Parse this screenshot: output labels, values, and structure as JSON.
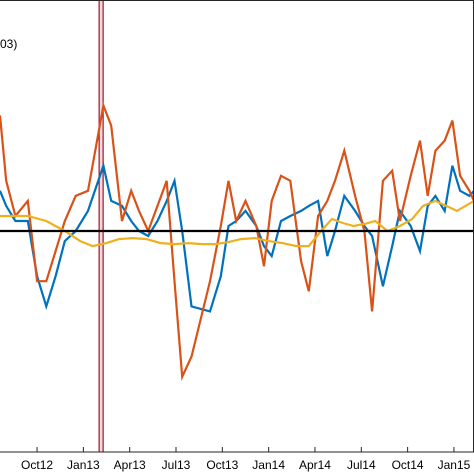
{
  "chart_data": {
    "type": "line",
    "title": "",
    "xlabel": "",
    "ylabel": "",
    "annotation": "03)",
    "grid": false,
    "x_tick_labels": [
      "Oct12",
      "Jan13",
      "Apr13",
      "Jul13",
      "Oct13",
      "Jan14",
      "Apr14",
      "Jul14",
      "Oct14",
      "Jan15"
    ],
    "x_tick_positions": [
      3,
      6,
      9,
      12,
      15,
      18,
      21,
      24,
      27,
      30
    ],
    "xlim": [
      0.6,
      31.3
    ],
    "ylim": [
      -2.2,
      2.3
    ],
    "baseline": 0,
    "baseline_color": "#000000",
    "event_marker": {
      "x": 7.15,
      "band_color": "#f2d9d9",
      "line_color": "#a2142f"
    },
    "series": [
      {
        "color": "#0072bd",
        "x": [
          0.6,
          1,
          1.6,
          2.4,
          3,
          3.6,
          4.2,
          4.8,
          5.5,
          6.3,
          7.3,
          7.8,
          8.5,
          9.1,
          9.6,
          10.2,
          10.8,
          11.4,
          11.9,
          12.4,
          13,
          14.2,
          14.9,
          15.4,
          15.9,
          16.5,
          17.2,
          17.7,
          18.2,
          18.8,
          19.4,
          20.1,
          20.6,
          21.2,
          21.8,
          22.3,
          22.9,
          23.6,
          24.2,
          24.7,
          25.4,
          26,
          26.5,
          27.2,
          27.8,
          28.3,
          28.8,
          29.4,
          29.9,
          30.4,
          31,
          31.3
        ],
        "y": [
          0.4,
          0.25,
          0.1,
          0.1,
          -0.45,
          -0.75,
          -0.45,
          -0.1,
          0,
          0.2,
          0.65,
          0.3,
          0.25,
          0.1,
          0,
          -0.05,
          0.1,
          0.3,
          0.5,
          0,
          -0.75,
          -0.8,
          -0.45,
          0.05,
          0.1,
          0.2,
          0.05,
          -0.15,
          -0.25,
          0.1,
          0.15,
          0.2,
          0.25,
          0.3,
          -0.25,
          0,
          0.35,
          0.2,
          0.05,
          -0.05,
          -0.55,
          -0.15,
          0.2,
          0.05,
          -0.2,
          0.25,
          0.35,
          0.2,
          0.65,
          0.4,
          0.35,
          0.4
        ]
      },
      {
        "color": "#d95319",
        "x": [
          0.6,
          1,
          1.6,
          2.4,
          3,
          3.6,
          4.2,
          4.8,
          5.5,
          6.3,
          7.3,
          7.8,
          8.5,
          9.1,
          9.6,
          10.2,
          10.8,
          11.4,
          11.9,
          12.4,
          13,
          14.2,
          14.9,
          15.4,
          15.9,
          16.5,
          17.2,
          17.7,
          18.2,
          18.8,
          19.4,
          20.1,
          20.6,
          21.2,
          21.8,
          22.3,
          22.9,
          23.6,
          24.2,
          24.7,
          25.4,
          26,
          26.5,
          27.2,
          27.8,
          28.3,
          28.8,
          29.4,
          29.9,
          30.4,
          31,
          31.3
        ],
        "y": [
          1.15,
          0.5,
          0.15,
          0.3,
          -0.5,
          -0.5,
          -0.2,
          0.1,
          0.35,
          0.4,
          1.25,
          1.05,
          0.1,
          0.4,
          0.2,
          0,
          0.25,
          0.5,
          -0.5,
          -1.45,
          -1.25,
          -0.5,
          0.05,
          0.5,
          0.1,
          0.3,
          0.05,
          -0.35,
          0.3,
          0.55,
          0.5,
          -0.3,
          -0.6,
          0.15,
          0.3,
          0.5,
          0.8,
          0.35,
          0,
          -0.8,
          0.5,
          0.6,
          0.1,
          0.55,
          0.9,
          0.35,
          0.8,
          0.9,
          1.1,
          0.55,
          0.4,
          0.3
        ]
      },
      {
        "color": "#edb120",
        "x": [
          0.6,
          1.4,
          2.4,
          3.6,
          4.8,
          5.8,
          6.6,
          7.5,
          8.3,
          9.2,
          10.1,
          11,
          11.9,
          12.8,
          13.7,
          14.6,
          15.4,
          16.2,
          17.1,
          18,
          18.9,
          19.8,
          20.6,
          21.4,
          22.1,
          22.8,
          23.5,
          24.2,
          24.9,
          25.7,
          26.5,
          27.3,
          28,
          28.8,
          29.5,
          30.2,
          31.3
        ],
        "y": [
          0.15,
          0.15,
          0.15,
          0.1,
          0,
          -0.1,
          -0.15,
          -0.12,
          -0.08,
          -0.07,
          -0.08,
          -0.12,
          -0.13,
          -0.12,
          -0.13,
          -0.13,
          -0.11,
          -0.08,
          -0.07,
          -0.1,
          -0.12,
          -0.15,
          -0.15,
          0,
          0.12,
          0.08,
          0.05,
          0.07,
          0.1,
          0,
          0.05,
          0.12,
          0.25,
          0.3,
          0.25,
          0.2,
          0.3
        ]
      }
    ]
  }
}
